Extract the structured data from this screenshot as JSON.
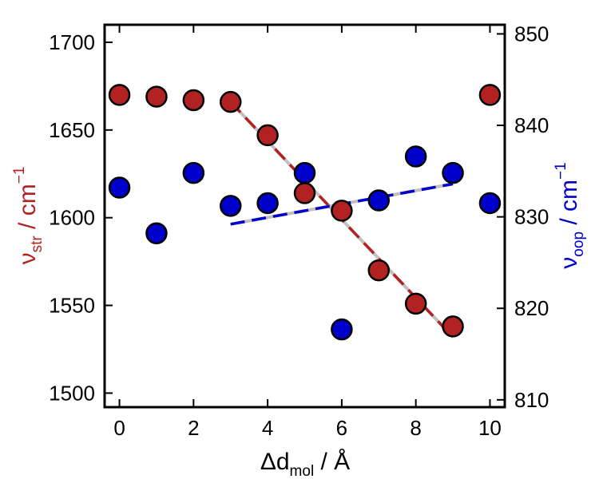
{
  "chart_data": {
    "type": "scatter",
    "title": "",
    "x": [
      0,
      1,
      2,
      3,
      4,
      5,
      6,
      7,
      8,
      9,
      10
    ],
    "xlim": [
      -0.4,
      10.4
    ],
    "xticks": [
      0,
      2,
      4,
      6,
      8,
      10
    ],
    "xlabel": {
      "main": "Δd",
      "sub": "mol",
      "unit": " / Å"
    },
    "y_left": {
      "lim": [
        1492,
        1710
      ],
      "ticks": [
        1500,
        1550,
        1600,
        1650,
        1700
      ],
      "label": {
        "main": "ν",
        "sub": "str",
        "unit": " / cm",
        "sup": "−1"
      },
      "color": "#b22222"
    },
    "y_right": {
      "lim": [
        809.2,
        851
      ],
      "ticks": [
        810,
        820,
        830,
        840,
        850
      ],
      "label": {
        "main": "ν",
        "sub": "oop",
        "unit": " / cm",
        "sup": "−1"
      },
      "color": "#0000cc"
    },
    "series": [
      {
        "axis": "left",
        "color": "#b22222",
        "values": [
          1670,
          1669,
          1667,
          1666,
          1647,
          1614,
          1604,
          1570,
          1551,
          1538,
          1670
        ],
        "fit": {
          "x": [
            3,
            9
          ],
          "y": [
            1666,
            1532
          ]
        }
      },
      {
        "axis": "right",
        "color": "#0000cc",
        "values": [
          833.2,
          828.2,
          834.8,
          831.2,
          831.5,
          834.8,
          817.7,
          831.8,
          836.6,
          834.8,
          831.5
        ],
        "fit": {
          "x": [
            3,
            9
          ],
          "y": [
            829.2,
            833.6
          ]
        }
      }
    ],
    "fit_underlay_color": "#c0c0c0"
  }
}
